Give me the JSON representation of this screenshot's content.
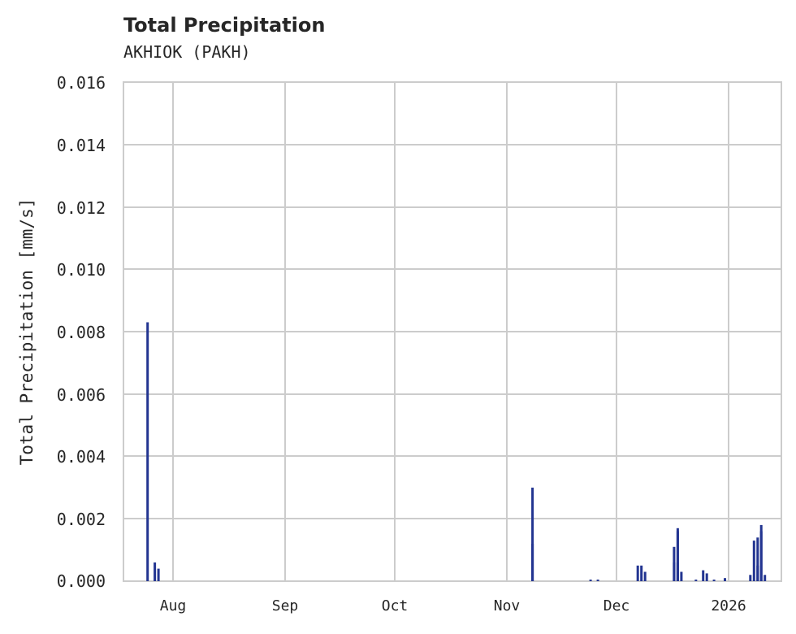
{
  "chart_data": {
    "type": "bar",
    "title": "Total Precipitation",
    "subtitle": "AKHIOK (PAKH)",
    "xlabel": "",
    "ylabel": "Total Precipitation [mm/s]",
    "ylim": [
      0,
      0.016
    ],
    "yticks": [
      "0.000",
      "0.002",
      "0.004",
      "0.006",
      "0.008",
      "0.010",
      "0.012",
      "0.014",
      "0.016"
    ],
    "xticks": [
      "Aug",
      "Sep",
      "Oct",
      "Nov",
      "Dec",
      "2026"
    ],
    "grid": true,
    "color": "#233591",
    "series": [
      {
        "name": "Total Precipitation",
        "points": [
          {
            "date": "2025-07-25",
            "value": 0.0083
          },
          {
            "date": "2025-07-27",
            "value": 0.0006
          },
          {
            "date": "2025-07-28",
            "value": 0.0004
          },
          {
            "date": "2025-11-08",
            "value": 0.0012
          },
          {
            "date": "2025-11-08",
            "value": 0.003
          },
          {
            "date": "2025-11-24",
            "value": 5e-05
          },
          {
            "date": "2025-11-26",
            "value": 5e-05
          },
          {
            "date": "2025-12-07",
            "value": 0.0005
          },
          {
            "date": "2025-12-08",
            "value": 0.0005
          },
          {
            "date": "2025-12-09",
            "value": 0.0003
          },
          {
            "date": "2025-12-17",
            "value": 0.0006
          },
          {
            "date": "2025-12-17",
            "value": 0.0011
          },
          {
            "date": "2025-12-18",
            "value": 0.0016
          },
          {
            "date": "2025-12-18",
            "value": 0.0017
          },
          {
            "date": "2025-12-18",
            "value": 0.0006
          },
          {
            "date": "2025-12-19",
            "value": 0.0003
          },
          {
            "date": "2025-12-23",
            "value": 5e-05
          },
          {
            "date": "2025-12-25",
            "value": 0.00035
          },
          {
            "date": "2025-12-26",
            "value": 0.00025
          },
          {
            "date": "2025-12-28",
            "value": 5e-05
          },
          {
            "date": "2025-12-31",
            "value": 0.0001
          },
          {
            "date": "2026-01-07",
            "value": 0.0002
          },
          {
            "date": "2026-01-08",
            "value": 0.0013
          },
          {
            "date": "2026-01-09",
            "value": 0.0005
          },
          {
            "date": "2026-01-09",
            "value": 0.0014
          },
          {
            "date": "2026-01-10",
            "value": 0.0016
          },
          {
            "date": "2026-01-10",
            "value": 0.0018
          },
          {
            "date": "2026-01-11",
            "value": 0.0002
          }
        ]
      }
    ]
  }
}
